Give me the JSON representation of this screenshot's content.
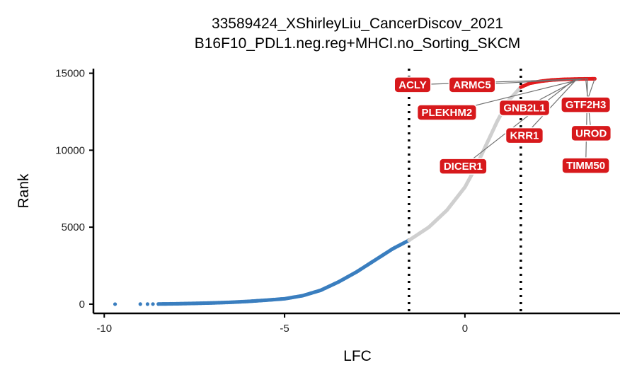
{
  "chart_data": {
    "type": "scatter",
    "title": "33589424_XShirleyLiu_CancerDiscov_2021",
    "subtitle": "B16F10_PDL1.neg.reg+MHCI.no_Sorting_SKCM",
    "xlabel": "LFC",
    "ylabel": "Rank",
    "xlim": [
      -10.3,
      4.3
    ],
    "ylim": [
      -600,
      15300
    ],
    "x_ticks": [
      -10,
      -5,
      0
    ],
    "x_tick_labels": [
      "-10",
      "-5",
      "0"
    ],
    "y_ticks": [
      0,
      5000,
      10000,
      15000
    ],
    "y_tick_labels": [
      "0",
      "5000",
      "10000",
      "15000"
    ],
    "thresholds": [
      -1.55,
      1.55
    ],
    "grid": false,
    "legend": "none",
    "colors": {
      "low": "#3a7ebf",
      "mid": "#cfcfcf",
      "high": "#e31a1c",
      "label_bg": "#d7191c",
      "label_text": "#ffffff"
    },
    "series": [
      {
        "group": "low",
        "color": "#3a7ebf",
        "points": [
          [
            -9.7,
            0
          ],
          [
            -9.0,
            2
          ],
          [
            -8.8,
            4
          ],
          [
            -8.65,
            7
          ],
          [
            -8.5,
            10
          ],
          [
            -8.35,
            14
          ],
          [
            -8.2,
            18
          ],
          [
            -8.0,
            25
          ],
          [
            -7.8,
            35
          ],
          [
            -7.5,
            50
          ],
          [
            -7.0,
            80
          ],
          [
            -6.5,
            120
          ],
          [
            -6.0,
            180
          ],
          [
            -5.5,
            260
          ],
          [
            -5.0,
            350
          ],
          [
            -4.5,
            550
          ],
          [
            -4.0,
            900
          ],
          [
            -3.5,
            1450
          ],
          [
            -3.0,
            2100
          ],
          [
            -2.5,
            2850
          ],
          [
            -2.0,
            3600
          ],
          [
            -1.55,
            4150
          ]
        ]
      },
      {
        "group": "mid",
        "color": "#cfcfcf",
        "points": [
          [
            -1.55,
            4150
          ],
          [
            -1.0,
            5000
          ],
          [
            -0.5,
            6100
          ],
          [
            0.0,
            7600
          ],
          [
            0.3,
            8900
          ],
          [
            0.6,
            10400
          ],
          [
            0.9,
            11900
          ],
          [
            1.2,
            13200
          ],
          [
            1.55,
            14100
          ]
        ]
      },
      {
        "group": "high",
        "color": "#e31a1c",
        "points": [
          [
            1.55,
            14100
          ],
          [
            1.8,
            14350
          ],
          [
            2.1,
            14480
          ],
          [
            2.4,
            14560
          ],
          [
            2.7,
            14600
          ],
          [
            3.0,
            14620
          ],
          [
            3.2,
            14630
          ],
          [
            3.6,
            14640
          ]
        ]
      }
    ],
    "labeled_genes": [
      {
        "name": "ACLY",
        "x": 3.4,
        "y": 14640,
        "label_x": -1.45,
        "label_y": 14250
      },
      {
        "name": "ARMC5",
        "x": 3.3,
        "y": 14630,
        "label_x": 0.2,
        "label_y": 14250
      },
      {
        "name": "PLEKHM2",
        "x": 3.25,
        "y": 14625,
        "label_x": -0.5,
        "label_y": 12450
      },
      {
        "name": "GNB2L1",
        "x": 3.15,
        "y": 14620,
        "label_x": 1.65,
        "label_y": 12750
      },
      {
        "name": "GTF2H3",
        "x": 3.6,
        "y": 14640,
        "label_x": 3.35,
        "label_y": 12950
      },
      {
        "name": "KRR1",
        "x": 3.1,
        "y": 14615,
        "label_x": 1.65,
        "label_y": 10950
      },
      {
        "name": "UROD",
        "x": 3.35,
        "y": 14635,
        "label_x": 3.5,
        "label_y": 11100
      },
      {
        "name": "DICER1",
        "x": 3.05,
        "y": 14610,
        "label_x": -0.05,
        "label_y": 8950
      },
      {
        "name": "TIMM50",
        "x": 3.4,
        "y": 14638,
        "label_x": 3.35,
        "label_y": 9000
      }
    ]
  }
}
